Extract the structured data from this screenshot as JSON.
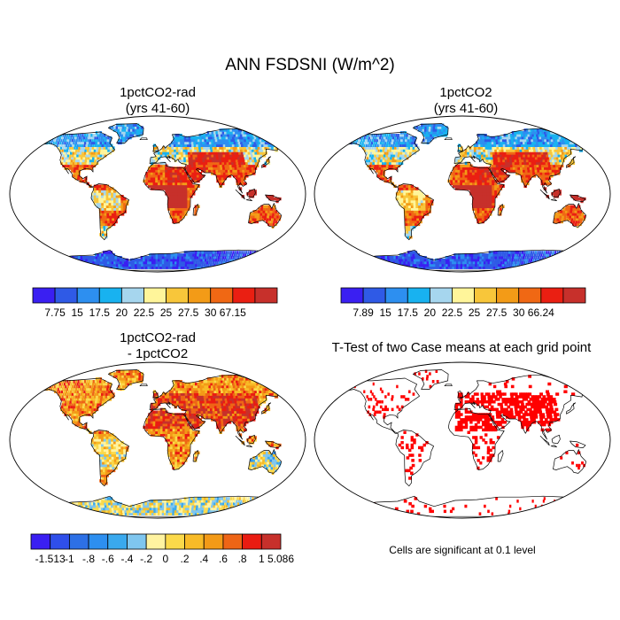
{
  "title": "ANN FSDSNI (W/m^2)",
  "panels": {
    "p1": {
      "title_line1": "1pctCO2-rad",
      "title_line2": "(yrs 41-60)"
    },
    "p2": {
      "title_line1": "1pctCO2",
      "title_line2": "(yrs 41-60)"
    },
    "p3": {
      "title_line1": "1pctCO2-rad",
      "title_line2": "- 1pctCO2"
    },
    "p4": {
      "title_line1": "T-Test of two Case means at each grid point"
    }
  },
  "colorbars": {
    "cb1": {
      "labels": [
        "7.75",
        "15",
        "17.5",
        "20",
        "22.5",
        "25",
        "27.5",
        "30",
        "67.15"
      ],
      "colors": [
        "#3a1ff2",
        "#2f5ae6",
        "#2d8ff0",
        "#18b2f0",
        "#a6d6ee",
        "#fff59a",
        "#f8c63a",
        "#f39b17",
        "#f06814",
        "#ea1f12",
        "#c7302b"
      ]
    },
    "cb2": {
      "labels": [
        "7.89",
        "15",
        "17.5",
        "20",
        "22.5",
        "25",
        "27.5",
        "30",
        "66.24"
      ],
      "colors": [
        "#3a1ff2",
        "#2f5ae6",
        "#2d8ff0",
        "#18b2f0",
        "#a6d6ee",
        "#fff59a",
        "#f8c63a",
        "#f39b17",
        "#f06814",
        "#ea1f12",
        "#c7302b"
      ]
    },
    "cb3": {
      "labels": [
        "-1.513",
        "-1",
        "-.8",
        "-.6",
        "-.4",
        "-.2",
        "0",
        ".2",
        ".4",
        ".6",
        ".8",
        "1",
        "5.086"
      ],
      "colors": [
        "#3a1ff2",
        "#2f4fea",
        "#2d70e6",
        "#2d8ff0",
        "#3aa9ee",
        "#7fc6ef",
        "#fff3a0",
        "#fbd94a",
        "#f8bb27",
        "#f39a17",
        "#ee6516",
        "#ea1c12",
        "#c7302b"
      ]
    }
  },
  "significance_note": "Cells are significant at 0.1 level",
  "chart_data": [
    {
      "type": "heatmap",
      "title": "1pctCO2-rad (yrs 41-60)",
      "variable": "ANN FSDSNI",
      "units": "W/m^2",
      "colorbar_levels": [
        7.75,
        15,
        17.5,
        20,
        22.5,
        25,
        27.5,
        30,
        67.15
      ]
    },
    {
      "type": "heatmap",
      "title": "1pctCO2 (yrs 41-60)",
      "variable": "ANN FSDSNI",
      "units": "W/m^2",
      "colorbar_levels": [
        7.89,
        15,
        17.5,
        20,
        22.5,
        25,
        27.5,
        30,
        66.24
      ]
    },
    {
      "type": "heatmap",
      "title": "1pctCO2-rad - 1pctCO2",
      "variable": "ANN FSDSNI",
      "units": "W/m^2",
      "colorbar_levels": [
        -1.513,
        -1,
        -0.8,
        -0.6,
        -0.4,
        -0.2,
        0,
        0.2,
        0.4,
        0.6,
        0.8,
        1,
        5.086
      ]
    },
    {
      "type": "heatmap",
      "title": "T-Test of two Case means at each grid point",
      "significance_level": 0.1,
      "significant_color": "#ff0000"
    }
  ]
}
